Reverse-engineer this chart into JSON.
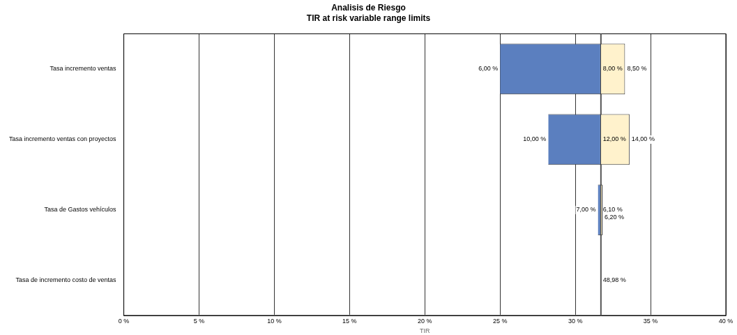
{
  "chart_data": {
    "type": "bar",
    "orientation": "horizontal",
    "title": "Analisis de Riesgo",
    "subtitle": "TIR at risk variable range limits",
    "xlabel": "TIR",
    "categories": [
      "Tasa incremento ventas",
      "Tasa incremento ventas con proyectos",
      "Tasa de Gastos vehículos",
      "Tasa de incremento costo de ventas"
    ],
    "series": [
      {
        "color": "#5b7fbf",
        "base": [
          25.0,
          28.2,
          31.5,
          null
        ],
        "values": [
          6.7,
          3.5,
          0.2,
          null
        ]
      },
      {
        "color": "#fff2cc",
        "base": [
          31.7,
          31.7,
          31.7,
          null
        ],
        "values": [
          1.6,
          1.9,
          0.1,
          null
        ]
      }
    ],
    "annotations": [
      {
        "text": "6,00 %",
        "x": 25.0,
        "y": "Tasa incremento ventas"
      },
      {
        "text": "10,00 %",
        "x": 28.2,
        "y": "Tasa incremento ventas con proyectos"
      },
      {
        "text": "7,00 %",
        "x": 31.5,
        "y": "Tasa de Gastos vehículos"
      },
      {
        "text": "8,00 %",
        "x": 31.7,
        "y": "Tasa incremento ventas"
      },
      {
        "text": "12,00 %",
        "x": 31.7,
        "y": "Tasa incremento ventas con proyectos"
      },
      {
        "text": "6,10 %",
        "x": 31.7,
        "y": "Tasa de Gastos vehículos"
      },
      {
        "text": "48,98 %",
        "x": 31.7,
        "y": "Tasa de incremento costo de ventas"
      },
      {
        "text": "8,50 %",
        "x": 33.3,
        "y": "Tasa incremento ventas"
      },
      {
        "text": "14,00 %",
        "x": 33.6,
        "y": "Tasa incremento ventas con proyectos"
      },
      {
        "text": "6,20 %",
        "x": 31.8,
        "y": "Tasa de Gastos vehículos"
      }
    ],
    "ref_lines": [
      {
        "axis": "x",
        "value": 31.7,
        "color": "#555555"
      }
    ],
    "xlim": [
      0,
      40
    ],
    "xticks": [
      {
        "value": 0,
        "label": "0 %"
      },
      {
        "value": 5,
        "label": "5 %"
      },
      {
        "value": 10,
        "label": "10 %"
      },
      {
        "value": 15,
        "label": "15 %"
      },
      {
        "value": 20,
        "label": "20 %"
      },
      {
        "value": 25,
        "label": "25 %"
      },
      {
        "value": 30,
        "label": "30 %"
      },
      {
        "value": 35,
        "label": "35 %"
      },
      {
        "value": 40,
        "label": "40 %"
      }
    ],
    "grid": "x",
    "legend": false
  }
}
